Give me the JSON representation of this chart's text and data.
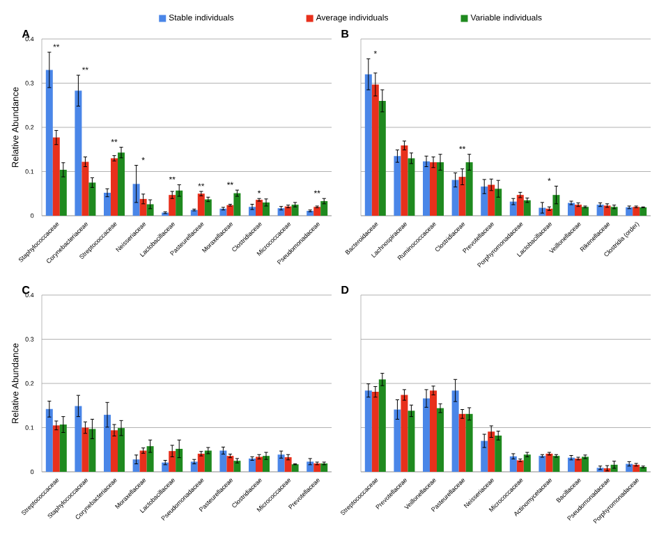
{
  "chart_data": [
    {
      "type": "bar",
      "title": "A",
      "ylabel": "Relative Abundance",
      "legend": "top",
      "grid": "y",
      "categories": [
        "Staphylococcaceae",
        "Corynebacteriaceae",
        "Streptococcaceae",
        "Neisseriaceae",
        "Lactobacillaceae",
        "Pasteurellaceae",
        "Moraxellaceae",
        "Clostridiaceae",
        "Micrococcaceae",
        "Pseudomonadaceae"
      ],
      "ylim": [
        0,
        0.4
      ],
      "yticks": [
        0,
        0.1,
        0.2,
        0.3,
        0.4
      ],
      "series": [
        {
          "name": "Stable individuals",
          "color": "#4a86e8",
          "values": [
            0.33,
            0.283,
            0.052,
            0.072,
            0.007,
            0.013,
            0.016,
            0.02,
            0.017,
            0.011
          ],
          "errors": [
            0.04,
            0.035,
            0.009,
            0.042,
            0.002,
            0.002,
            0.003,
            0.006,
            0.004,
            0.002
          ]
        },
        {
          "name": "Average individuals",
          "color": "#e8301c",
          "values": [
            0.177,
            0.122,
            0.13,
            0.038,
            0.047,
            0.05,
            0.024,
            0.036,
            0.021,
            0.02
          ],
          "errors": [
            0.016,
            0.011,
            0.006,
            0.011,
            0.008,
            0.005,
            0.002,
            0.003,
            0.003,
            0.002
          ]
        },
        {
          "name": "Variable individuals",
          "color": "#1f8a1f",
          "values": [
            0.104,
            0.075,
            0.143,
            0.026,
            0.057,
            0.037,
            0.051,
            0.03,
            0.025,
            0.033
          ],
          "errors": [
            0.016,
            0.011,
            0.012,
            0.01,
            0.013,
            0.005,
            0.007,
            0.008,
            0.005,
            0.006
          ]
        }
      ],
      "annotations": [
        {
          "text": "**",
          "x": "Staphylococcaceae",
          "y": 0.33
        },
        {
          "text": "**",
          "x": "Corynebacteriaceae",
          "y": 0.283
        },
        {
          "text": "**",
          "x": "Streptococcaceae",
          "y": 0.143
        },
        {
          "text": "*",
          "x": "Neisseriaceae",
          "y": 0.072
        },
        {
          "text": "**",
          "x": "Lactobacillaceae",
          "y": 0.057
        },
        {
          "text": "**",
          "x": "Pasteurellaceae",
          "y": 0.05
        },
        {
          "text": "**",
          "x": "Moraxellaceae",
          "y": 0.051
        },
        {
          "text": "*",
          "x": "Clostridiaceae",
          "y": 0.036
        },
        {
          "text": "**",
          "x": "Pseudomonadaceae",
          "y": 0.033
        }
      ]
    },
    {
      "type": "bar",
      "title": "B",
      "grid": "y",
      "tick_labels": "x",
      "categories": [
        "Bacteroidaceae",
        "Lachnospiraceae",
        "Ruminococcaceae",
        "Clostridiaceae",
        "Prevotellaceae",
        "Porphyromonadaceae",
        "Lactobacillaceae",
        "Veillonellaceae",
        "Rikenellaceae",
        "Clostridia (order)"
      ],
      "ylim": [
        0,
        0.4
      ],
      "yticks": [
        0,
        0.1,
        0.2,
        0.3,
        0.4
      ],
      "series": [
        {
          "color": "#4a86e8",
          "values": [
            0.32,
            0.135,
            0.123,
            0.081,
            0.066,
            0.032,
            0.018,
            0.029,
            0.025,
            0.019
          ],
          "errors": [
            0.035,
            0.014,
            0.012,
            0.016,
            0.016,
            0.007,
            0.012,
            0.004,
            0.004,
            0.003
          ]
        },
        {
          "color": "#e8301c",
          "values": [
            0.297,
            0.159,
            0.121,
            0.088,
            0.07,
            0.047,
            0.016,
            0.025,
            0.023,
            0.02
          ],
          "errors": [
            0.026,
            0.01,
            0.012,
            0.018,
            0.013,
            0.006,
            0.004,
            0.004,
            0.004,
            0.002
          ]
        },
        {
          "color": "#1f8a1f",
          "values": [
            0.26,
            0.13,
            0.121,
            0.121,
            0.061,
            0.035,
            0.047,
            0.02,
            0.02,
            0.019
          ],
          "errors": [
            0.025,
            0.012,
            0.018,
            0.018,
            0.019,
            0.005,
            0.02,
            0.002,
            0.004,
            0.001
          ]
        }
      ],
      "annotations": [
        {
          "text": "*",
          "x": "Bacteroidaceae",
          "y": 0.32
        },
        {
          "text": "**",
          "x": "Clostridiaceae",
          "y": 0.121
        },
        {
          "text": "*",
          "x": "Lactobacillaceae",
          "y": 0.047
        }
      ]
    },
    {
      "type": "bar",
      "title": "C",
      "ylabel": "Relative Abundance",
      "grid": "y",
      "categories": [
        "Streptococcaceae",
        "Staphylococcaceae",
        "Corynebacteriaceae",
        "Moraxellaceae",
        "Lactobacillaceae",
        "Pseudomonadaceae",
        "Pasteurellaceae",
        "Clostridiaceae",
        "Micrococcaceae",
        "Prevotellaceae"
      ],
      "ylim": [
        0,
        0.4
      ],
      "yticks": [
        0,
        0.1,
        0.2,
        0.3,
        0.4
      ],
      "series": [
        {
          "color": "#4a86e8",
          "values": [
            0.142,
            0.149,
            0.129,
            0.028,
            0.021,
            0.023,
            0.048,
            0.03,
            0.039,
            0.023
          ],
          "errors": [
            0.018,
            0.024,
            0.028,
            0.01,
            0.005,
            0.005,
            0.008,
            0.004,
            0.008,
            0.007
          ]
        },
        {
          "color": "#e8301c",
          "values": [
            0.105,
            0.1,
            0.094,
            0.048,
            0.047,
            0.041,
            0.036,
            0.034,
            0.033,
            0.019
          ],
          "errors": [
            0.01,
            0.013,
            0.013,
            0.006,
            0.013,
            0.005,
            0.004,
            0.005,
            0.006,
            0.003
          ]
        },
        {
          "color": "#1f8a1f",
          "values": [
            0.107,
            0.097,
            0.099,
            0.058,
            0.052,
            0.048,
            0.025,
            0.036,
            0.017,
            0.019
          ],
          "errors": [
            0.018,
            0.022,
            0.017,
            0.014,
            0.02,
            0.007,
            0.005,
            0.008,
            0.001,
            0.003
          ]
        }
      ]
    },
    {
      "type": "bar",
      "title": "D",
      "grid": "y",
      "tick_labels": "x",
      "categories": [
        "Streptococcaceae",
        "Prevotellaceae",
        "Veillonellaceae",
        "Pasteurellaceae",
        "Neisseriaceae",
        "Micrococcaceae",
        "Actinomycetaceae",
        "Bacillaceae",
        "Pseudomonadaceae",
        "Porphyromonadaceae"
      ],
      "ylim": [
        0,
        0.4
      ],
      "yticks": [
        0,
        0.1,
        0.2,
        0.3,
        0.4
      ],
      "series": [
        {
          "color": "#4a86e8",
          "values": [
            0.184,
            0.141,
            0.166,
            0.184,
            0.07,
            0.035,
            0.036,
            0.032,
            0.009,
            0.018
          ],
          "errors": [
            0.015,
            0.022,
            0.02,
            0.025,
            0.015,
            0.006,
            0.003,
            0.005,
            0.004,
            0.005
          ]
        },
        {
          "color": "#e8301c",
          "values": [
            0.181,
            0.174,
            0.184,
            0.131,
            0.091,
            0.026,
            0.041,
            0.03,
            0.008,
            0.016
          ],
          "errors": [
            0.012,
            0.012,
            0.01,
            0.01,
            0.013,
            0.003,
            0.003,
            0.003,
            0.006,
            0.003
          ]
        },
        {
          "color": "#1f8a1f",
          "values": [
            0.209,
            0.138,
            0.144,
            0.131,
            0.082,
            0.039,
            0.036,
            0.034,
            0.016,
            0.011
          ],
          "errors": [
            0.014,
            0.013,
            0.01,
            0.014,
            0.01,
            0.005,
            0.003,
            0.004,
            0.008,
            0.002
          ]
        }
      ]
    }
  ]
}
